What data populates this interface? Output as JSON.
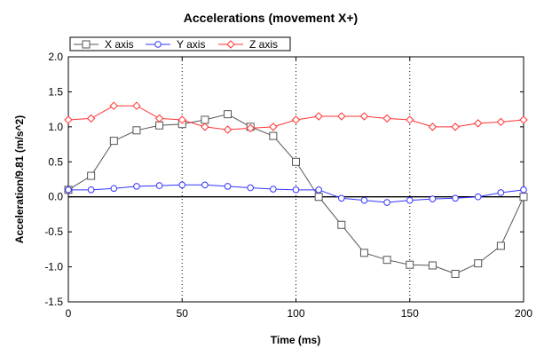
{
  "chart_data": {
    "type": "line",
    "title": "Accelerations (movement X+)",
    "xlabel": "Time (ms)",
    "ylabel": "Acceleration/9.81 (m/s^2)",
    "xlim": [
      0,
      200
    ],
    "ylim": [
      -1.5,
      2.0
    ],
    "xticks": [
      0,
      50,
      100,
      150,
      200
    ],
    "yticks": [
      -1.5,
      -1.0,
      -0.5,
      0.0,
      0.5,
      1.0,
      1.5,
      2.0
    ],
    "xtick_labels": [
      "0",
      "50",
      "100",
      "150",
      "200"
    ],
    "ytick_labels": [
      "-1.5",
      "-1.0",
      "-0.5",
      "0.0",
      "0.5",
      "1.0",
      "1.5",
      "2.0"
    ],
    "grid": "dotted vertical at x ticks",
    "zero_line": true,
    "legend_position": "top-left, above plot",
    "x": [
      0,
      10,
      20,
      30,
      40,
      50,
      60,
      70,
      80,
      90,
      100,
      110,
      120,
      130,
      140,
      150,
      160,
      170,
      180,
      190,
      200
    ],
    "series": [
      {
        "name": "X axis",
        "color": "#555555",
        "marker": "square",
        "values": [
          0.1,
          0.3,
          0.8,
          0.95,
          1.02,
          1.04,
          1.1,
          1.18,
          1.0,
          0.87,
          0.5,
          0.0,
          -0.4,
          -0.8,
          -0.9,
          -0.97,
          -0.98,
          -1.1,
          -0.95,
          -0.7,
          0.0
        ]
      },
      {
        "name": "Y axis",
        "color": "#3333ff",
        "marker": "circle",
        "values": [
          0.1,
          0.1,
          0.12,
          0.15,
          0.16,
          0.17,
          0.17,
          0.15,
          0.13,
          0.11,
          0.1,
          0.1,
          -0.02,
          -0.05,
          -0.08,
          -0.05,
          -0.03,
          -0.02,
          0.0,
          0.06,
          0.1
        ]
      },
      {
        "name": "Z axis",
        "color": "#ff3333",
        "marker": "diamond",
        "values": [
          1.1,
          1.12,
          1.3,
          1.3,
          1.12,
          1.1,
          1.0,
          0.96,
          0.98,
          1.0,
          1.1,
          1.15,
          1.15,
          1.15,
          1.12,
          1.1,
          1.0,
          1.0,
          1.05,
          1.07,
          1.1
        ]
      }
    ]
  }
}
